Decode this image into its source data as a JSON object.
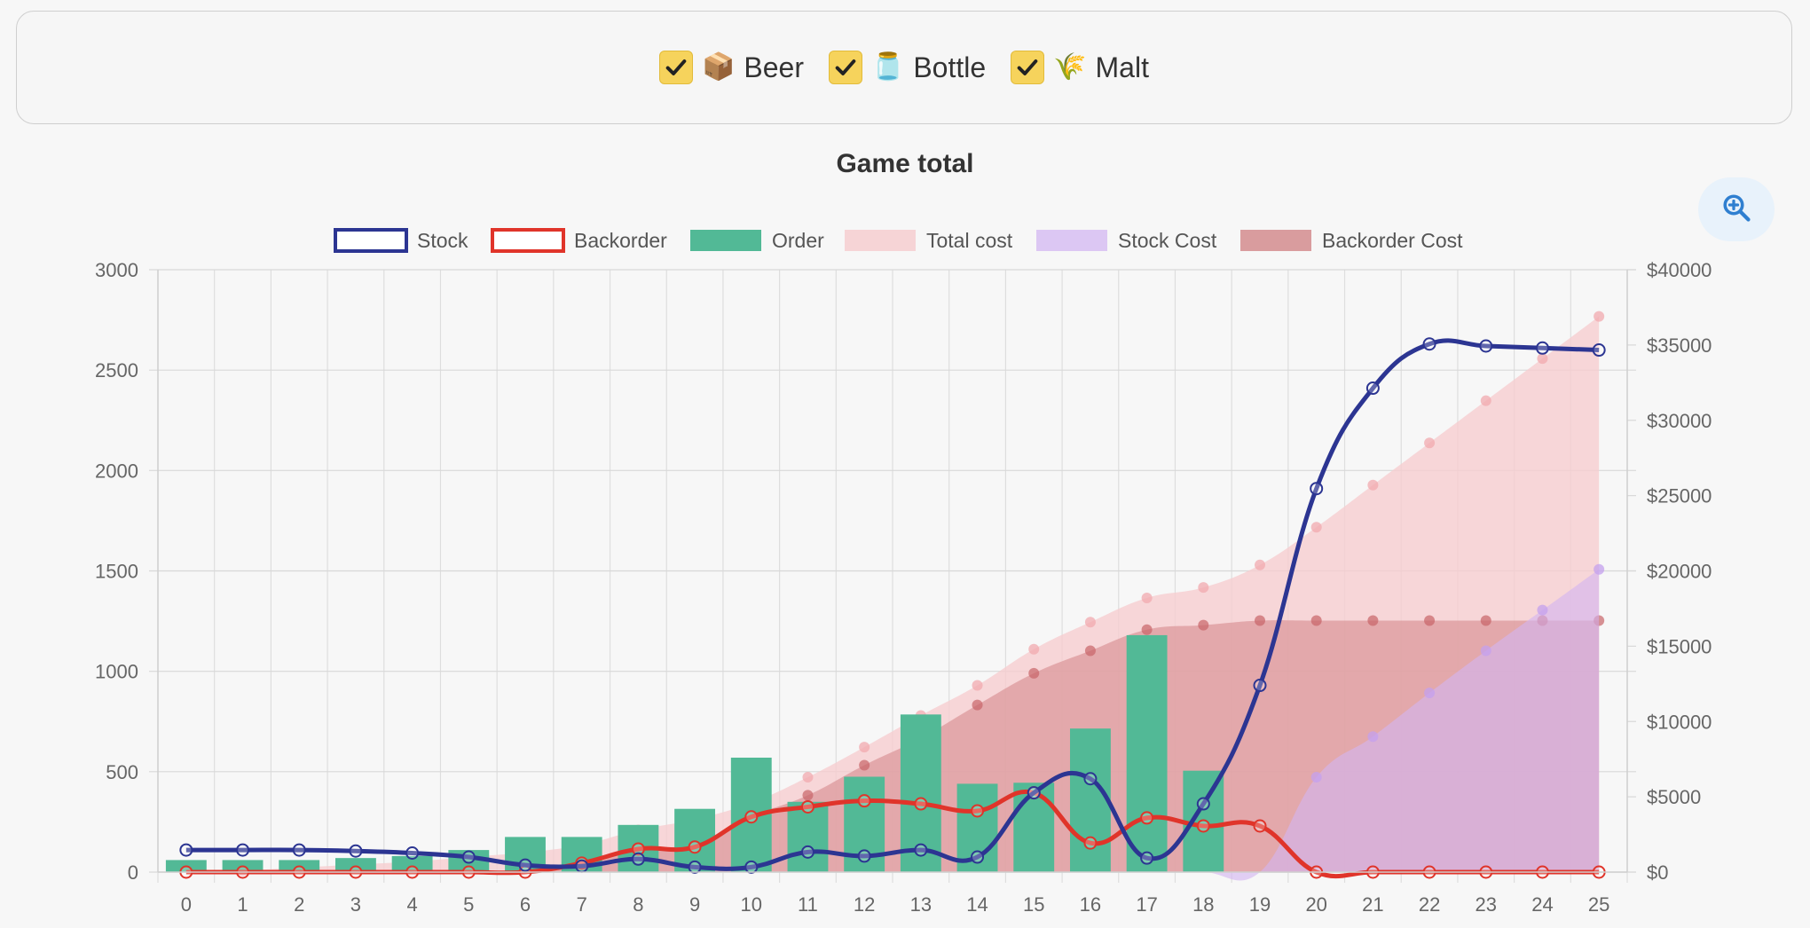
{
  "filters": [
    {
      "label": "Beer",
      "icon": "📦",
      "icon_name": "box-icon",
      "checked": true
    },
    {
      "label": "Bottle",
      "icon": "🫙",
      "icon_name": "jar-icon",
      "checked": true
    },
    {
      "label": "Malt",
      "icon": "🌾",
      "icon_name": "wheat-icon",
      "checked": true
    }
  ],
  "zoom_icon": "zoom-in-icon",
  "chart_data": {
    "type": "bar",
    "title": "Game total",
    "categories": [
      "0",
      "1",
      "2",
      "3",
      "4",
      "5",
      "6",
      "7",
      "8",
      "9",
      "10",
      "11",
      "12",
      "13",
      "14",
      "15",
      "16",
      "17",
      "18",
      "19",
      "20",
      "21",
      "22",
      "23",
      "24",
      "25"
    ],
    "y_left_range": [
      0,
      3000
    ],
    "y_left_ticks": [
      0,
      500,
      1000,
      1500,
      2000,
      2500,
      3000
    ],
    "y_right_range": [
      0,
      40000
    ],
    "y_right_ticks": [
      0,
      5000,
      10000,
      15000,
      20000,
      25000,
      30000,
      35000,
      40000
    ],
    "y_right_tick_labels": [
      "$0",
      "$5000",
      "$10000",
      "$15000",
      "$20000",
      "$25000",
      "$30000",
      "$35000",
      "$40000"
    ],
    "grid": true,
    "legend_position": "top-center",
    "series": [
      {
        "name": "Stock",
        "kind": "line",
        "axis": "left",
        "color": "#2c3592",
        "values": [
          110,
          110,
          110,
          105,
          95,
          75,
          35,
          30,
          65,
          25,
          25,
          100,
          80,
          110,
          75,
          395,
          465,
          70,
          340,
          930,
          1910,
          2410,
          2630,
          2620,
          2610,
          2600
        ]
      },
      {
        "name": "Backorder",
        "kind": "line",
        "axis": "left",
        "color": "#e0342a",
        "values": [
          0,
          0,
          0,
          0,
          0,
          0,
          0,
          45,
          115,
          125,
          275,
          325,
          355,
          340,
          305,
          395,
          145,
          270,
          230,
          230,
          0,
          0,
          0,
          0,
          0,
          0
        ]
      },
      {
        "name": "Order",
        "kind": "bar",
        "axis": "left",
        "color": "#52b996",
        "values": [
          60,
          60,
          60,
          70,
          80,
          110,
          175,
          175,
          235,
          315,
          570,
          350,
          475,
          785,
          440,
          445,
          715,
          1180,
          505,
          0,
          0,
          0,
          0,
          0,
          0,
          0
        ]
      },
      {
        "name": "Total cost",
        "kind": "area",
        "axis": "right",
        "color": "#f6d4d6",
        "values": [
          0,
          100,
          300,
          500,
          700,
          1000,
          1300,
          1800,
          2800,
          3500,
          4600,
          6300,
          8300,
          10400,
          12400,
          14800,
          16600,
          18200,
          18900,
          20400,
          22900,
          25700,
          28500,
          31300,
          34100,
          36900
        ]
      },
      {
        "name": "Stock Cost",
        "kind": "area",
        "axis": "right",
        "color": "#dcc7f3",
        "values": [
          0,
          0,
          0,
          0,
          0,
          0,
          0,
          0,
          0,
          0,
          0,
          0,
          0,
          0,
          0,
          0,
          0,
          0,
          0,
          0,
          6300,
          9000,
          11900,
          14700,
          17400,
          20100
        ]
      },
      {
        "name": "Backorder Cost",
        "kind": "area",
        "axis": "right",
        "color": "#d99c9e",
        "values": [
          0,
          0,
          0,
          0,
          0,
          0,
          0,
          400,
          1500,
          1900,
          3700,
          5100,
          7100,
          8900,
          11100,
          13200,
          14700,
          16100,
          16400,
          16700,
          16700,
          16700,
          16700,
          16700,
          16700,
          16700
        ]
      }
    ]
  }
}
